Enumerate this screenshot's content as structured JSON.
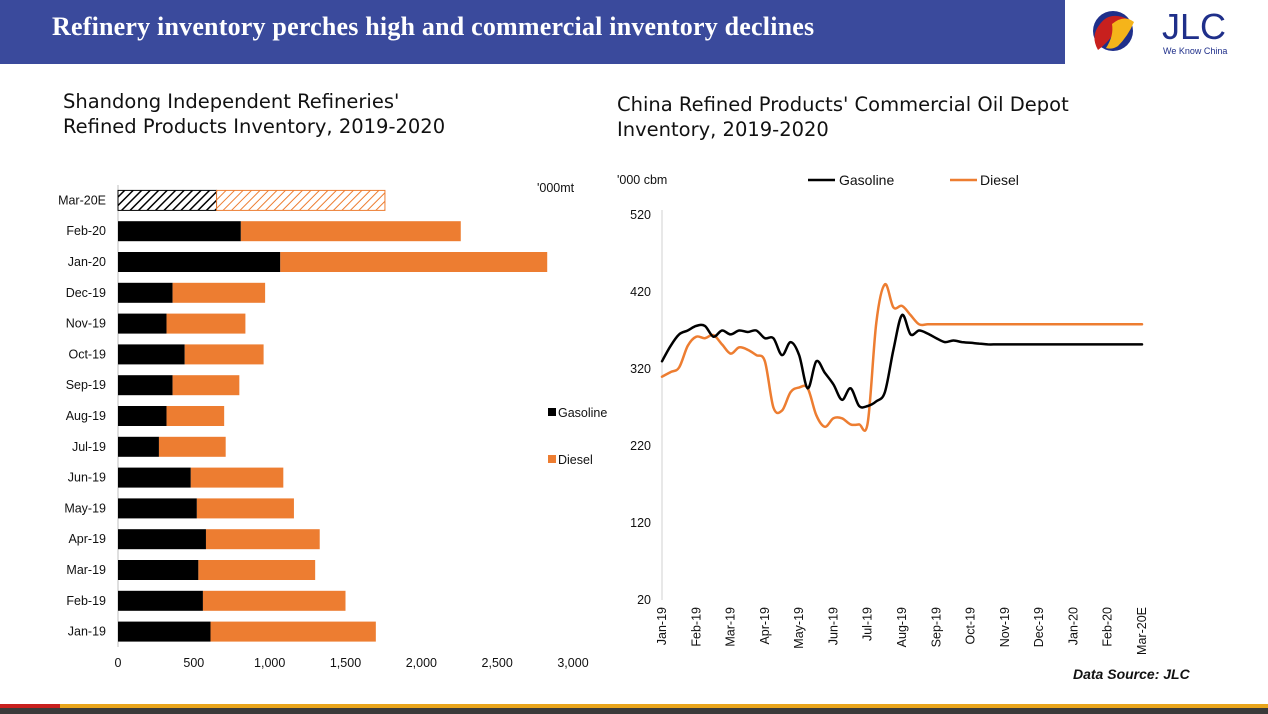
{
  "header": {
    "title": "Refinery inventory perches high and commercial inventory declines"
  },
  "logo": {
    "name": "JLC",
    "tagline": "We Know China"
  },
  "colors": {
    "header_bg": "#3a4a9c",
    "gasoline": "#000000",
    "diesel": "#ed7d31"
  },
  "footer": {
    "source": "Data Source: JLC"
  },
  "chart_data": [
    {
      "type": "bar",
      "orientation": "horizontal",
      "stacked": true,
      "title": "Shandong Independent Refineries'\nRefined Products Inventory, 2019-2020",
      "unit": "'000mt",
      "categories": [
        "Jan-19",
        "Feb-19",
        "Mar-19",
        "Apr-19",
        "May-19",
        "Jun-19",
        "Jul-19",
        "Aug-19",
        "Sep-19",
        "Oct-19",
        "Nov-19",
        "Dec-19",
        "Jan-20",
        "Feb-20",
        "Mar-20E"
      ],
      "series": [
        {
          "name": "Gasoline",
          "values": [
            610,
            560,
            530,
            580,
            520,
            480,
            270,
            320,
            360,
            440,
            320,
            360,
            1070,
            810,
            650
          ]
        },
        {
          "name": "Diesel",
          "values": [
            1090,
            940,
            770,
            750,
            640,
            610,
            440,
            380,
            440,
            520,
            520,
            610,
            1760,
            1450,
            1110
          ]
        }
      ],
      "estimated_categories": [
        "Mar-20E"
      ],
      "xlim": [
        0,
        3000
      ],
      "xticks": [
        "0",
        "500",
        "1,000",
        "1,500",
        "2,000",
        "2,500",
        "3,000"
      ],
      "legend": "right"
    },
    {
      "type": "line",
      "title": "China Refined Products' Commercial Oil Depot\nInventory, 2019-2020",
      "ylabel": "'000 cbm",
      "ylim": [
        20,
        520
      ],
      "yticks": [
        "20",
        "120",
        "220",
        "320",
        "420",
        "520"
      ],
      "xticks": [
        "Jan-19",
        "Feb-19",
        "Mar-19",
        "Apr-19",
        "May-19",
        "Jun-19",
        "Jul-19",
        "Aug-19",
        "Sep-19",
        "Oct-19",
        "Nov-19",
        "Dec-19",
        "Jan-20",
        "Feb-20",
        "Mar-20E"
      ],
      "x_index": [
        0,
        0.25,
        0.5,
        0.75,
        1,
        1.25,
        1.5,
        1.75,
        2,
        2.25,
        2.5,
        2.75,
        3,
        3.25,
        3.5,
        3.75,
        4,
        4.25,
        4.5,
        4.75,
        5,
        5.25,
        5.5,
        5.75,
        6,
        6.25,
        6.5,
        6.75,
        7,
        7.25,
        7.5,
        7.75,
        8,
        8.25,
        8.5,
        8.75,
        9,
        9.25,
        9.5,
        9.75,
        10,
        10.25,
        10.5,
        10.75,
        11,
        11.25,
        11.5,
        11.75,
        12,
        12.25,
        12.5,
        12.75,
        13,
        13.25,
        13.5,
        13.75,
        14
      ],
      "series": [
        {
          "name": "Gasoline",
          "values": [
            330,
            350,
            365,
            370,
            376,
            376,
            362,
            370,
            365,
            370,
            368,
            370,
            360,
            360,
            338,
            355,
            338,
            295,
            330,
            315,
            300,
            280,
            295,
            272,
            272,
            278,
            290,
            345,
            390,
            365,
            370,
            366,
            360,
            355,
            357,
            355,
            354,
            353,
            352,
            352,
            352,
            352,
            352,
            352,
            352,
            352,
            352,
            352,
            352,
            352,
            352,
            352,
            352,
            352,
            352,
            352,
            352
          ]
        },
        {
          "name": "Diesel",
          "values": [
            310,
            316,
            322,
            350,
            362,
            360,
            364,
            352,
            340,
            348,
            345,
            338,
            330,
            270,
            266,
            290,
            296,
            295,
            260,
            245,
            256,
            256,
            248,
            248,
            250,
            380,
            430,
            400,
            402,
            390,
            378,
            378,
            378,
            378,
            378,
            378,
            378,
            378,
            378,
            378,
            378,
            378,
            378,
            378,
            378,
            378,
            378,
            378,
            378,
            378,
            378,
            378,
            378,
            378,
            378,
            378,
            378
          ]
        }
      ],
      "legend": "top"
    }
  ]
}
